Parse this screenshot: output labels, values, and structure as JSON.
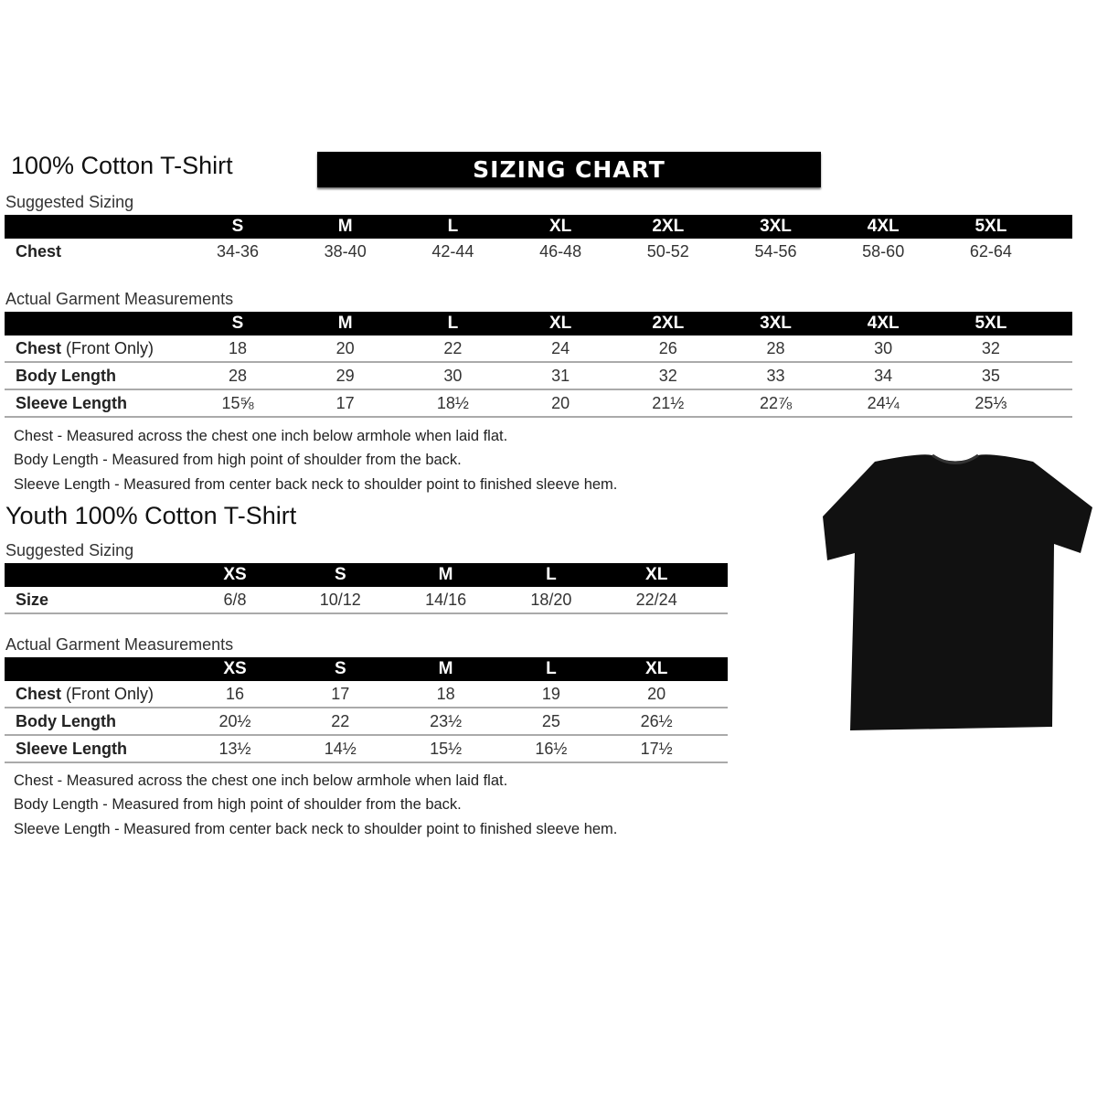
{
  "adult": {
    "title": "100% Cotton T-Shirt",
    "banner": "SIZING CHART",
    "suggested_label": "Suggested Sizing",
    "sizes": [
      "S",
      "M",
      "L",
      "XL",
      "2XL",
      "3XL",
      "4XL",
      "5XL"
    ],
    "suggested_rows": [
      {
        "label": "Chest",
        "label_extra": "",
        "values": [
          "34-36",
          "38-40",
          "42-44",
          "46-48",
          "50-52",
          "54-56",
          "58-60",
          "62-64"
        ]
      }
    ],
    "actual_label": "Actual Garment Measurements",
    "actual_rows": [
      {
        "label": "Chest",
        "label_extra": " (Front Only)",
        "values": [
          "18",
          "20",
          "22",
          "24",
          "26",
          "28",
          "30",
          "32"
        ]
      },
      {
        "label": "Body Length",
        "label_extra": "",
        "values": [
          "28",
          "29",
          "30",
          "31",
          "32",
          "33",
          "34",
          "35"
        ]
      },
      {
        "label": "Sleeve Length",
        "label_extra": "",
        "values": [
          "15⅝",
          "17",
          "18½",
          "20",
          "21½",
          "22⅞",
          "24¼",
          "25⅓"
        ]
      }
    ],
    "notes": [
      "Chest - Measured across the chest one inch below armhole when laid flat.",
      "Body Length - Measured from high point of shoulder from the back.",
      "Sleeve Length - Measured from center back neck to shoulder point to finished sleeve hem."
    ]
  },
  "youth": {
    "title": "Youth 100% Cotton T-Shirt",
    "suggested_label": "Suggested Sizing",
    "sizes": [
      "XS",
      "S",
      "M",
      "L",
      "XL"
    ],
    "suggested_rows": [
      {
        "label": "Size",
        "label_extra": "",
        "values": [
          "6/8",
          "10/12",
          "14/16",
          "18/20",
          "22/24"
        ]
      }
    ],
    "actual_label": "Actual Garment Measurements",
    "actual_rows": [
      {
        "label": "Chest",
        "label_extra": " (Front Only)",
        "values": [
          "16",
          "17",
          "18",
          "19",
          "20"
        ]
      },
      {
        "label": "Body Length",
        "label_extra": "",
        "values": [
          "20½",
          "22",
          "23½",
          "25",
          "26½"
        ]
      },
      {
        "label": "Sleeve Length",
        "label_extra": "",
        "values": [
          "13½",
          "14½",
          "15½",
          "16½",
          "17½"
        ]
      }
    ],
    "notes": [
      "Chest - Measured across the chest one inch below armhole when laid flat.",
      "Body Length - Measured from high point of shoulder from the back.",
      "Sleeve Length - Measured from center back neck to shoulder point to finished sleeve hem."
    ]
  },
  "image": {
    "tshirt_color": "#111111"
  }
}
